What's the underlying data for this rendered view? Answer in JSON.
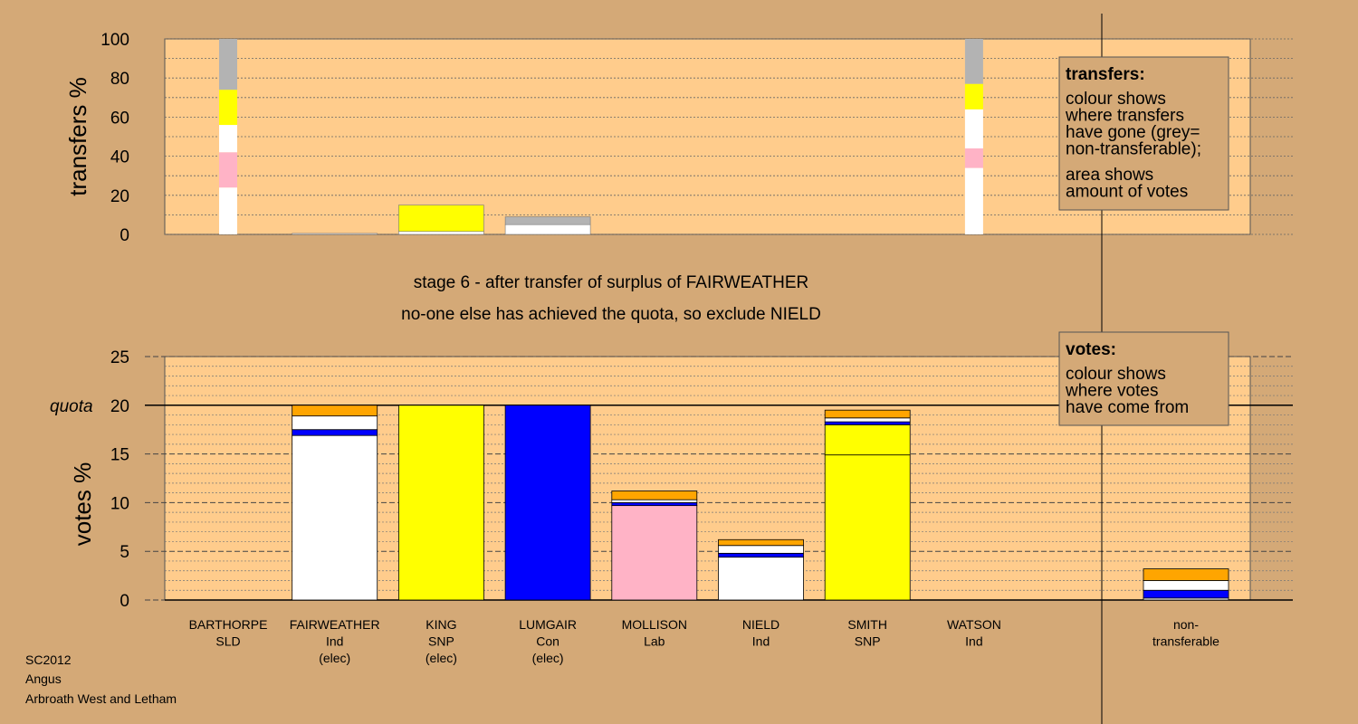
{
  "stage": {
    "line1": "stage 6 - after transfer of surplus of FAIRWEATHER",
    "line2": "no-one else has achieved the quota, so exclude NIELD"
  },
  "footer": [
    "SC2012",
    "Angus",
    "Arbroath West and Letham"
  ],
  "colors": {
    "background": "#d4a977",
    "plot_area": "#ffcc8c",
    "SLD": "#ffa500",
    "Ind": "#ffffff",
    "SNP": "#ffff00",
    "Con": "#0000ff",
    "Lab": "#ffb3c6",
    "non_transferable": "#b3b3b3",
    "legend_box": "#d4a977"
  },
  "chart_data": [
    {
      "type": "bar",
      "name": "transfers",
      "ylabel": "transfers %",
      "ylim": [
        0,
        100
      ],
      "yticks": [
        0,
        20,
        40,
        60,
        80,
        100
      ],
      "legend": {
        "title": "transfers:",
        "lines": [
          "colour shows",
          "where transfers",
          "have gone (grey=",
          "non-transferable);",
          "area shows",
          "amount of votes"
        ]
      },
      "bars": [
        {
          "slot": 0,
          "width": "narrow",
          "segments": [
            {
              "party": "Ind",
              "value": 24
            },
            {
              "party": "Lab",
              "value": 18
            },
            {
              "party": "Ind",
              "value": 14
            },
            {
              "party": "SNP",
              "value": 18
            },
            {
              "party": "non_transferable",
              "value": 26
            }
          ]
        },
        {
          "slot": 1,
          "width": "full",
          "segments": [
            {
              "party": "Ind",
              "value": 0.5
            }
          ]
        },
        {
          "slot": 2,
          "width": "full",
          "segments": [
            {
              "party": "Ind",
              "value": 1.5
            },
            {
              "party": "SNP",
              "value": 13.5
            }
          ]
        },
        {
          "slot": 3,
          "width": "full",
          "segments": [
            {
              "party": "Ind",
              "value": 5
            },
            {
              "party": "non_transferable",
              "value": 4
            }
          ]
        },
        {
          "slot": 7,
          "width": "narrow",
          "segments": [
            {
              "party": "Ind",
              "value": 34
            },
            {
              "party": "Lab",
              "value": 10
            },
            {
              "party": "Ind",
              "value": 20
            },
            {
              "party": "SNP",
              "value": 13
            },
            {
              "party": "non_transferable",
              "value": 23
            }
          ]
        }
      ]
    },
    {
      "type": "bar",
      "name": "votes",
      "ylabel": "votes %",
      "ylim": [
        0,
        25
      ],
      "yticks": [
        0,
        5,
        10,
        15,
        20,
        25
      ],
      "quota": {
        "label": "quota",
        "value": 20
      },
      "legend": {
        "title": "votes:",
        "lines": [
          "colour shows",
          "where votes",
          "have come from"
        ]
      },
      "categories": [
        {
          "name": "BARTHORPE",
          "party": "SLD",
          "note": ""
        },
        {
          "name": "FAIRWEATHER",
          "party": "Ind",
          "note": "(elec)"
        },
        {
          "name": "KING",
          "party": "SNP",
          "note": "(elec)"
        },
        {
          "name": "LUMGAIR",
          "party": "Con",
          "note": "(elec)"
        },
        {
          "name": "MOLLISON",
          "party": "Lab",
          "note": ""
        },
        {
          "name": "NIELD",
          "party": "Ind",
          "note": ""
        },
        {
          "name": "SMITH",
          "party": "SNP",
          "note": ""
        },
        {
          "name": "WATSON",
          "party": "Ind",
          "note": ""
        },
        {
          "name": "non-",
          "party": "transferable",
          "note": ""
        }
      ],
      "bars": [
        {
          "segments": []
        },
        {
          "segments": [
            {
              "party": "Ind",
              "value": 16.9
            },
            {
              "party": "Con",
              "value": 0.6
            },
            {
              "party": "Ind",
              "value": 1.4
            },
            {
              "party": "SLD",
              "value": 1.1
            }
          ]
        },
        {
          "segments": [
            {
              "party": "SNP",
              "value": 20
            }
          ]
        },
        {
          "segments": [
            {
              "party": "Con",
              "value": 20
            }
          ]
        },
        {
          "segments": [
            {
              "party": "Lab",
              "value": 9.7
            },
            {
              "party": "Con",
              "value": 0.3
            },
            {
              "party": "Ind",
              "value": 0.3
            },
            {
              "party": "SLD",
              "value": 0.9
            }
          ]
        },
        {
          "segments": [
            {
              "party": "Ind",
              "value": 4.4
            },
            {
              "party": "Con",
              "value": 0.4
            },
            {
              "party": "Ind",
              "value": 0.8
            },
            {
              "party": "SLD",
              "value": 0.6
            }
          ]
        },
        {
          "segments": [
            {
              "party": "SNP",
              "value": 14.9
            },
            {
              "party": "SNP",
              "value": 3.1
            },
            {
              "party": "Con",
              "value": 0.3
            },
            {
              "party": "Ind",
              "value": 0.4
            },
            {
              "party": "SLD",
              "value": 0.8
            }
          ]
        },
        {
          "segments": []
        },
        {
          "segments": [
            {
              "party": "Ind",
              "value": 0.2
            },
            {
              "party": "Con",
              "value": 0.8
            },
            {
              "party": "Ind",
              "value": 1.0
            },
            {
              "party": "SLD",
              "value": 1.2
            }
          ]
        }
      ]
    }
  ]
}
